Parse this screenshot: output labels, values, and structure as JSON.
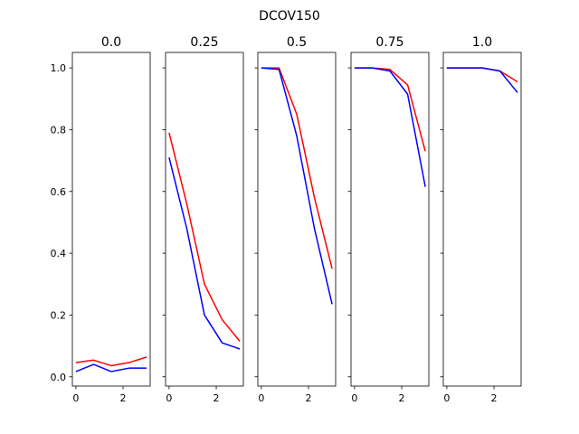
{
  "chart_data": {
    "type": "line",
    "suptitle": "DCOV150",
    "shared_y": true,
    "ylim": [
      -0.03,
      1.05
    ],
    "xlim": [
      -0.15,
      3.15
    ],
    "x": [
      0,
      0.75,
      1.5,
      2.25,
      3
    ],
    "xticks": [
      0,
      2
    ],
    "yticks": [
      0.0,
      0.2,
      0.4,
      0.6,
      0.8,
      1.0
    ],
    "ytick_labels": [
      "0.0",
      "0.2",
      "0.4",
      "0.6",
      "0.8",
      "1.0"
    ],
    "panels": [
      {
        "title": "0.0",
        "series": [
          {
            "color": "#ff0000",
            "values": [
              0.046,
              0.054,
              0.036,
              0.046,
              0.064
            ]
          },
          {
            "color": "#0000ff",
            "values": [
              0.017,
              0.04,
              0.017,
              0.028,
              0.028
            ]
          }
        ]
      },
      {
        "title": "0.25",
        "series": [
          {
            "color": "#ff0000",
            "values": [
              0.79,
              0.56,
              0.3,
              0.185,
              0.115
            ]
          },
          {
            "color": "#0000ff",
            "values": [
              0.71,
              0.48,
              0.2,
              0.11,
              0.09
            ]
          }
        ]
      },
      {
        "title": "0.5",
        "series": [
          {
            "color": "#ff0000",
            "values": [
              1.0,
              1.0,
              0.85,
              0.58,
              0.35
            ]
          },
          {
            "color": "#0000ff",
            "values": [
              1.0,
              0.995,
              0.78,
              0.48,
              0.235
            ]
          }
        ]
      },
      {
        "title": "0.75",
        "series": [
          {
            "color": "#ff0000",
            "values": [
              1.0,
              1.0,
              0.995,
              0.945,
              0.73
            ]
          },
          {
            "color": "#0000ff",
            "values": [
              1.0,
              1.0,
              0.99,
              0.915,
              0.615
            ]
          }
        ]
      },
      {
        "title": "1.0",
        "series": [
          {
            "color": "#ff0000",
            "values": [
              1.0,
              1.0,
              1.0,
              0.99,
              0.955
            ]
          },
          {
            "color": "#0000ff",
            "values": [
              1.0,
              1.0,
              1.0,
              0.99,
              0.92
            ]
          }
        ]
      }
    ]
  }
}
